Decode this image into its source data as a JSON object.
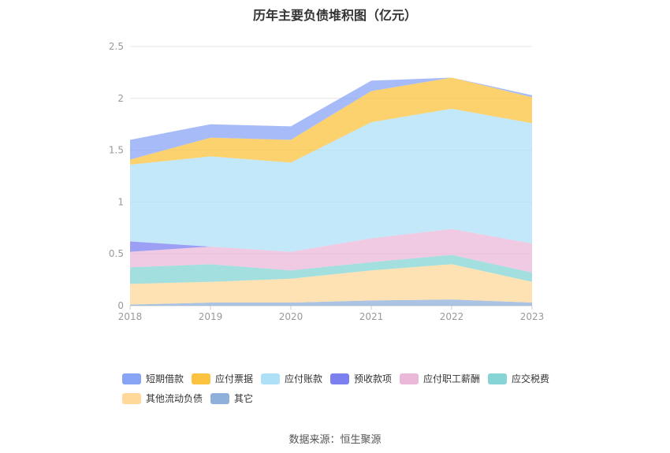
{
  "chart_data": {
    "type": "area",
    "title": "历年主要负债堆积图（亿元）",
    "x": [
      "2018",
      "2019",
      "2020",
      "2021",
      "2022",
      "2023"
    ],
    "ylim": [
      0,
      2.5
    ],
    "yticks": [
      "0",
      "0.5",
      "1",
      "1.5",
      "2",
      "2.5"
    ],
    "grid": true,
    "legend_position": "bottom",
    "series": [
      {
        "name": "其它",
        "color": "#8fb0db",
        "values": [
          0.01,
          0.03,
          0.03,
          0.05,
          0.06,
          0.03
        ]
      },
      {
        "name": "其他流动负债",
        "color": "#ffd89a",
        "values": [
          0.2,
          0.2,
          0.23,
          0.29,
          0.34,
          0.2
        ]
      },
      {
        "name": "应交税费",
        "color": "#86d4d4",
        "values": [
          0.16,
          0.17,
          0.08,
          0.08,
          0.09,
          0.09
        ]
      },
      {
        "name": "应付职工薪酬",
        "color": "#eab8d8",
        "values": [
          0.15,
          0.17,
          0.18,
          0.23,
          0.25,
          0.28
        ]
      },
      {
        "name": "预收款项",
        "color": "#7b7ff0",
        "values": [
          0.1,
          0.0,
          0.0,
          0.0,
          0.0,
          0.0
        ]
      },
      {
        "name": "应付账款",
        "color": "#aee0f7",
        "values": [
          0.74,
          0.87,
          0.86,
          1.12,
          1.16,
          1.16
        ]
      },
      {
        "name": "应付票据",
        "color": "#fbc33f",
        "values": [
          0.05,
          0.18,
          0.22,
          0.3,
          0.3,
          0.25
        ]
      },
      {
        "name": "短期借款",
        "color": "#88a4f5",
        "values": [
          0.19,
          0.13,
          0.13,
          0.1,
          0.0,
          0.02
        ]
      }
    ]
  },
  "legend": {
    "items": [
      {
        "label": "短期借款",
        "color": "#88a4f5"
      },
      {
        "label": "应付票据",
        "color": "#fbc33f"
      },
      {
        "label": "应付账款",
        "color": "#aee0f7"
      },
      {
        "label": "预收款项",
        "color": "#7b7ff0"
      },
      {
        "label": "应付职工薪酬",
        "color": "#eab8d8"
      },
      {
        "label": "应交税费",
        "color": "#86d4d4"
      },
      {
        "label": "其他流动负债",
        "color": "#ffd89a"
      },
      {
        "label": "其它",
        "color": "#8fb0db"
      }
    ]
  },
  "footer": {
    "source": "数据来源：恒生聚源"
  }
}
